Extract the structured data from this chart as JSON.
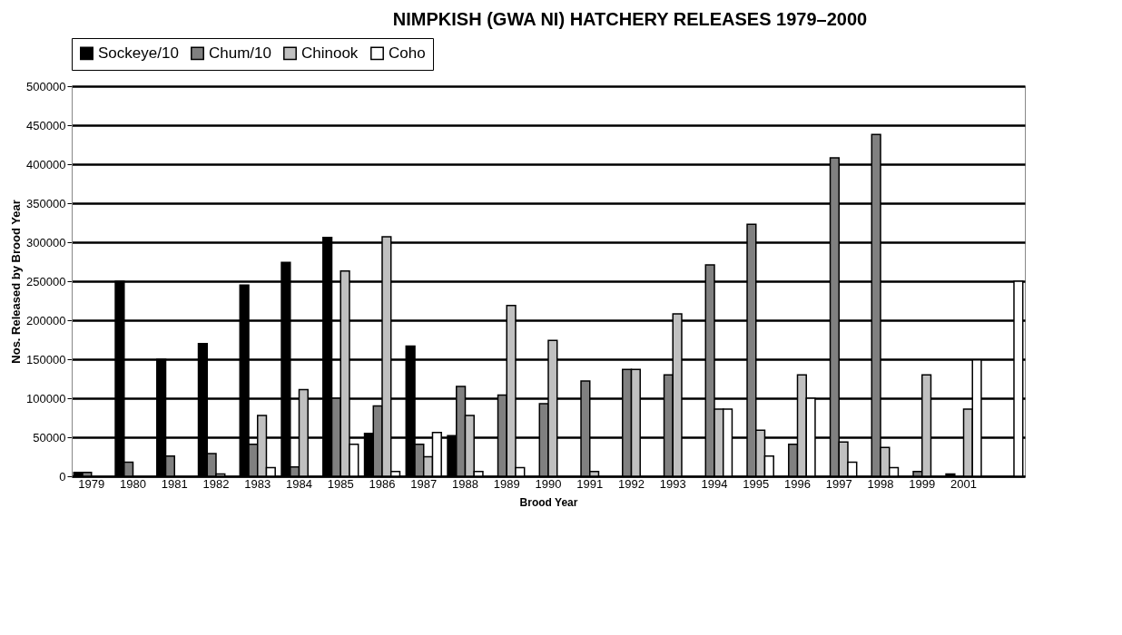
{
  "chart_data": {
    "type": "bar",
    "title": "NIMPKISH (GWA NI) HATCHERY RELEASES 1979–2000",
    "xlabel": "Brood Year",
    "ylabel": "Nos. Released by Brood Year",
    "categories": [
      "1979",
      "1980",
      "1981",
      "1982",
      "1983",
      "1984",
      "1985",
      "1986",
      "1987",
      "1988",
      "1989",
      "1990",
      "1991",
      "1992",
      "1993",
      "1994",
      "1995",
      "1996",
      "1997",
      "1998",
      "1999",
      "2001",
      null
    ],
    "series": [
      {
        "name": "Sockeye/10",
        "color": "#000000",
        "values": [
          5000,
          250000,
          150000,
          170000,
          245000,
          274000,
          306000,
          55000,
          167000,
          52000,
          null,
          null,
          null,
          null,
          null,
          null,
          null,
          null,
          null,
          null,
          null,
          3000,
          null
        ]
      },
      {
        "name": "Chum/10",
        "color": "#808080",
        "values": [
          5000,
          18000,
          26000,
          29000,
          41000,
          12000,
          100000,
          90000,
          41000,
          115000,
          104000,
          93000,
          122000,
          137000,
          130000,
          271000,
          323000,
          41000,
          408000,
          438000,
          6000,
          null,
          null
        ]
      },
      {
        "name": "Chinook",
        "color": "#c0c0c0",
        "values": [
          null,
          null,
          null,
          3000,
          78000,
          111000,
          263000,
          307000,
          25000,
          78000,
          219000,
          174000,
          6000,
          137000,
          208000,
          86000,
          59000,
          130000,
          44000,
          37000,
          130000,
          86000,
          null
        ]
      },
      {
        "name": "Coho",
        "color": "#ffffff",
        "values": [
          null,
          null,
          null,
          null,
          11000,
          null,
          41000,
          6000,
          56000,
          6000,
          11000,
          null,
          null,
          null,
          null,
          86000,
          26000,
          100000,
          18000,
          11000,
          null,
          149000,
          250000
        ]
      }
    ],
    "ylim": [
      0,
      500000
    ],
    "yticks": [
      0,
      50000,
      100000,
      150000,
      200000,
      250000,
      300000,
      350000,
      400000,
      450000,
      500000
    ],
    "grid": "y",
    "legend": "top"
  }
}
